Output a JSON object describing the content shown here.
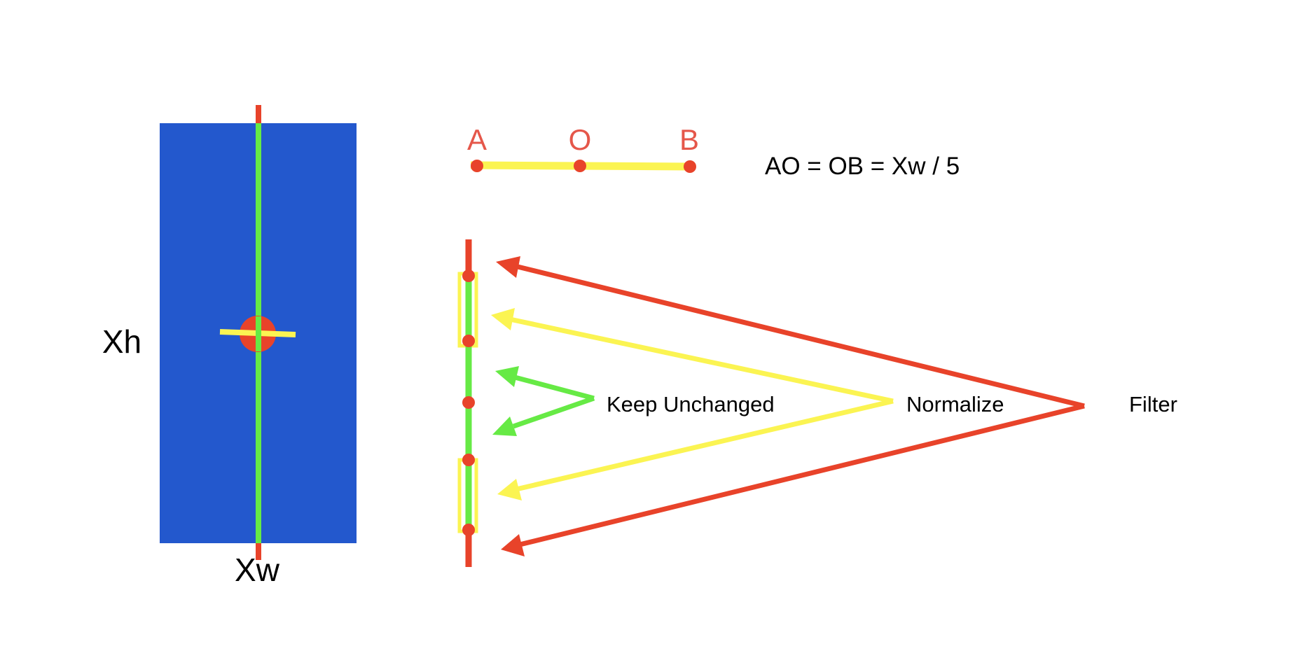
{
  "labels": {
    "height": "Xh",
    "width": "Xw",
    "point_a": "A",
    "point_o": "O",
    "point_b": "B",
    "equation": "AO = OB = Xw / 5",
    "keep": "Keep Unchanged",
    "normalize": "Normalize",
    "filter": "Filter"
  },
  "colors": {
    "blue": "#2358CD",
    "green": "#66EA45",
    "yellow": "#FBF452",
    "red": "#E8432A",
    "label_red": "#E5574A",
    "text": "#000000"
  }
}
